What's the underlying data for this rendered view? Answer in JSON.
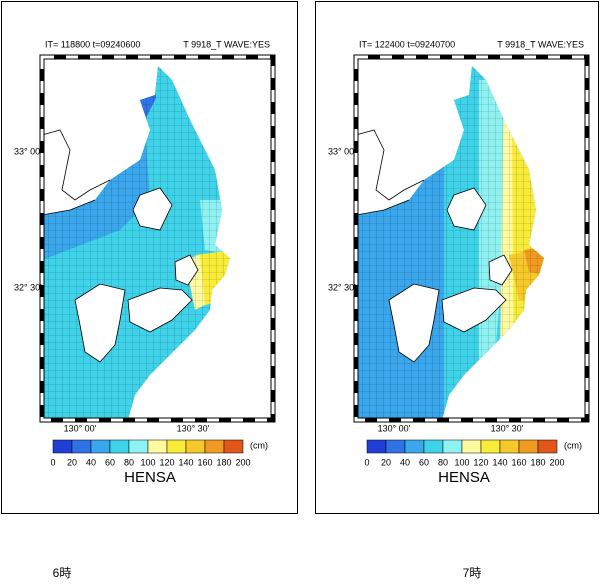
{
  "panels": [
    {
      "header": {
        "left": "IT=  118800    t=09240600",
        "right": "T 9918_T   WAVE:YES"
      },
      "lat_labels": [
        "33° 00'",
        "32° 30'"
      ],
      "lon_labels": [
        "130° 00'",
        "130° 30'"
      ],
      "colorbar": {
        "ticks": [
          0,
          20,
          40,
          60,
          80,
          100,
          120,
          140,
          160,
          180,
          200
        ],
        "unit": "(cm)",
        "colors": [
          "#1f3fd6",
          "#2f72e6",
          "#3aa6ec",
          "#3fd3ea",
          "#8ff2f2",
          "#fffaa0",
          "#f8ec38",
          "#f6c82a",
          "#f09a22",
          "#e2561a"
        ]
      },
      "label": "HENSA",
      "caption": "6時"
    },
    {
      "header": {
        "left": "IT=  122400    t=09240700",
        "right": "T 9918_T   WAVE:YES"
      },
      "lat_labels": [
        "33° 00'",
        "32° 30'"
      ],
      "lon_labels": [
        "130° 00'",
        "130° 30'"
      ],
      "colorbar": {
        "ticks": [
          0,
          20,
          40,
          60,
          80,
          100,
          120,
          140,
          160,
          180,
          200
        ],
        "unit": "(cm)",
        "colors": [
          "#1f3fd6",
          "#2f72e6",
          "#3aa6ec",
          "#3fd3ea",
          "#8ff2f2",
          "#fffaa0",
          "#f8ec38",
          "#f6c82a",
          "#f09a22",
          "#e2561a"
        ]
      },
      "label": "HENSA",
      "caption": "7時"
    }
  ]
}
